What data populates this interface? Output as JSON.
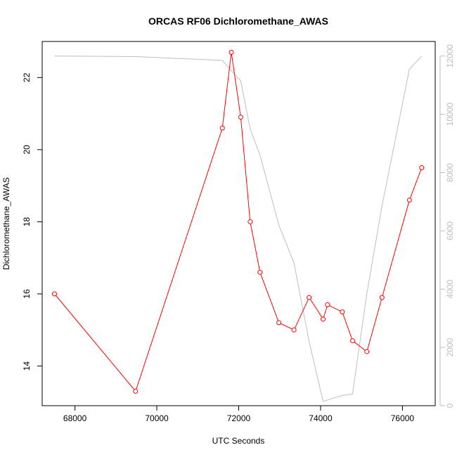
{
  "chart_data": {
    "type": "line",
    "title": "ORCAS RF06 Dichloromethane_AWAS",
    "xlabel": "UTC Seconds",
    "ylabel": "Dichloromethane_AWAS",
    "xlim": [
      67200,
      76800
    ],
    "ylim": [
      12.9,
      23.0
    ],
    "y2lim": [
      0,
      12500
    ],
    "x_ticks": [
      68000,
      70000,
      72000,
      74000,
      76000
    ],
    "y_ticks": [
      14,
      16,
      18,
      20,
      22
    ],
    "y2_ticks": [
      0,
      2000,
      4000,
      6000,
      8000,
      10000,
      12000
    ],
    "grid": false,
    "series": [
      {
        "color": "#ff0000",
        "marker": "open-circle",
        "axis": "left",
        "x": [
          67500,
          69480,
          71600,
          71820,
          72050,
          72280,
          72520,
          72980,
          73350,
          73720,
          74060,
          74170,
          74530,
          74780,
          75130,
          75500,
          76170,
          76470
        ],
        "y": [
          16.0,
          13.3,
          20.6,
          22.7,
          20.9,
          18.0,
          16.6,
          15.2,
          15.0,
          15.9,
          15.3,
          15.7,
          15.5,
          14.7,
          14.4,
          15.9,
          18.6,
          19.5
        ]
      },
      {
        "color": "#bebebe",
        "marker": "none",
        "axis": "right",
        "x": [
          67500,
          69500,
          71600,
          71820,
          72050,
          72280,
          72520,
          72980,
          73350,
          73720,
          74060,
          74530,
          74780,
          75130,
          75500,
          76170,
          76470
        ],
        "y": [
          12000,
          11980,
          11850,
          11500,
          11150,
          9500,
          8600,
          6200,
          4900,
          2200,
          150,
          350,
          400,
          3850,
          6850,
          11550,
          12000
        ]
      }
    ]
  }
}
